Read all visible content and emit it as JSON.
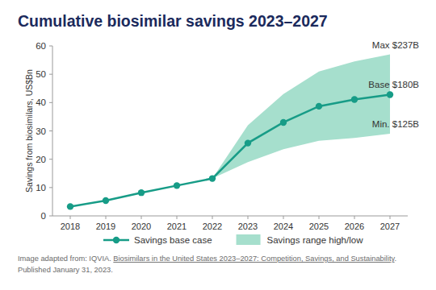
{
  "chart_data": {
    "type": "line",
    "title": "Cumulative biosimilar savings 2023–2027",
    "y_label": "Savings from biosimilars, US$Bn",
    "x": [
      2018,
      2019,
      2020,
      2021,
      2022,
      2023,
      2024,
      2025,
      2026,
      2027
    ],
    "xlim": [
      2017.5,
      2027.5
    ],
    "xticks": [
      2018,
      2019,
      2020,
      2021,
      2022,
      2023,
      2024,
      2025,
      2026,
      2027
    ],
    "ylim": [
      0,
      60
    ],
    "yticks": [
      0,
      10,
      20,
      30,
      40,
      50,
      60
    ],
    "grid": false,
    "legend": "bottom",
    "series": [
      {
        "name": "Savings base case",
        "type": "line",
        "color": "#179c87",
        "marker": "circle",
        "values": [
          3.3,
          5.4,
          8.2,
          10.7,
          13.2,
          25.7,
          33,
          38.7,
          41.1,
          42.8
        ]
      },
      {
        "name": "Savings range high/low",
        "type": "band",
        "color": "#a6dfcd",
        "values": [
          null,
          null,
          null,
          null,
          13.2,
          32,
          43,
          51,
          54.5,
          57
        ],
        "low": [
          null,
          null,
          null,
          null,
          13.2,
          19,
          23.5,
          26.5,
          27.5,
          29
        ]
      }
    ],
    "annotations": [
      {
        "text": "Max $237B",
        "x": 2027,
        "y": 57
      },
      {
        "text": "Base $180B",
        "x": 2027,
        "y": 42.8
      },
      {
        "text": "Min. $125B",
        "x": 2027,
        "y": 29
      }
    ],
    "source": {
      "prefix": "Image adapted from: IQVIA. ",
      "link": "Biosimilars in the United States 2023–2027: Competition, Savings, and Sustainability",
      "suffix": ".",
      "date": "Published January 31, 2023."
    }
  }
}
